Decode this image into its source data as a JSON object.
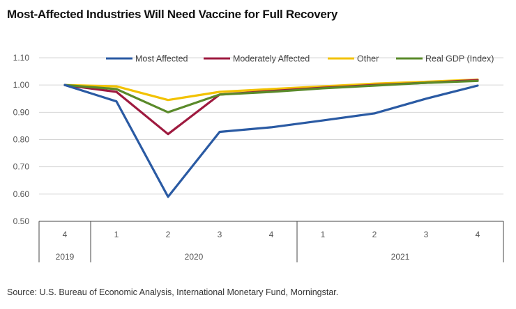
{
  "title": "Most-Affected Industries Will Need Vaccine for Full Recovery",
  "source": "Source: U.S. Bureau of Economic Analysis, International Monetary Fund, Morningstar.",
  "chart_data": {
    "type": "line",
    "title": "Most-Affected Industries Will Need Vaccine for Full Recovery",
    "xlabel": "",
    "ylabel": "",
    "ylim": [
      0.5,
      1.1
    ],
    "yticks": [
      "0.50",
      "0.60",
      "0.70",
      "0.80",
      "0.90",
      "1.00",
      "1.10"
    ],
    "yticks_values": [
      0.5,
      0.6,
      0.7,
      0.8,
      0.9,
      1.0,
      1.1
    ],
    "grid": true,
    "legend_position": "top",
    "categories": [
      "4",
      "1",
      "2",
      "3",
      "4",
      "1",
      "2",
      "3",
      "4"
    ],
    "years": [
      {
        "label": "2019",
        "span": 1
      },
      {
        "label": "2020",
        "span": 4
      },
      {
        "label": "2021",
        "span": 4
      }
    ],
    "series": [
      {
        "name": "Most Affected",
        "color": "#2a5aa3",
        "values": [
          1.0,
          0.94,
          0.59,
          0.828,
          0.845,
          0.87,
          0.896,
          0.95,
          0.998
        ]
      },
      {
        "name": "Moderately Affected",
        "color": "#9e1a3f",
        "values": [
          1.0,
          0.975,
          0.82,
          0.965,
          0.978,
          0.99,
          1.0,
          1.008,
          1.018
        ]
      },
      {
        "name": "Other",
        "color": "#f2c200",
        "values": [
          1.0,
          0.995,
          0.945,
          0.975,
          0.985,
          0.995,
          1.005,
          1.012,
          1.02
        ]
      },
      {
        "name": "Real GDP (Index)",
        "color": "#5a8a2a",
        "values": [
          1.0,
          0.985,
          0.9,
          0.965,
          0.975,
          0.988,
          0.998,
          1.008,
          1.015
        ]
      }
    ]
  }
}
